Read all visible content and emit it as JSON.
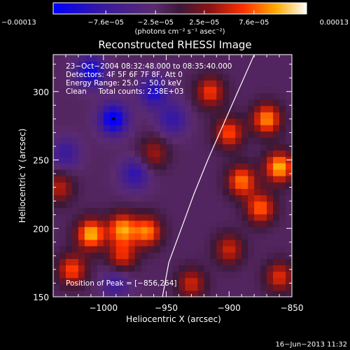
{
  "chart_data": {
    "type": "heatmap",
    "title": "Reconstructed RHESSI Image",
    "xlabel": "Heliocentric X (arcsec)",
    "ylabel": "Heliocentric Y (arcsec)",
    "xlim": [
      -1040,
      -850
    ],
    "ylim": [
      150,
      327
    ],
    "xticks": [
      -1000,
      -950,
      -900,
      -850
    ],
    "yticks": [
      150,
      200,
      250,
      300
    ],
    "xtick_labels": [
      "−1000",
      "−950",
      "−900",
      "−850"
    ],
    "ytick_labels": [
      "150",
      "200",
      "250",
      "300"
    ],
    "colorbar": {
      "range": [
        -0.00013,
        0.00013
      ],
      "ticks": [
        -0.00013,
        -7.6e-05,
        -2.5e-05,
        2.5e-05,
        7.6e-05,
        0.00013
      ],
      "tick_labels": [
        "−0.00013",
        "−7.6e−05",
        "−2.5e−05",
        "2.5e−05",
        "7.6e−05",
        "0.00013"
      ],
      "units": "(photons cm⁻² s⁻¹ asec⁻²)"
    },
    "annotations": [
      "23−Oct−2004 08:32:48.000 to 08:35:40.000",
      "Detectors: 4F 5F 6F 7F 8F, Att 0",
      "Energy Range: 25.0 − 50.0 keV",
      "Clean     Total counts: 2.58E+03",
      "Position of Peak = [−856,264]"
    ],
    "peak_position": [
      -856,
      264
    ],
    "limb_curve": [
      [
        -953,
        150
      ],
      [
        -948,
        175
      ],
      [
        -938,
        200
      ],
      [
        -928,
        225
      ],
      [
        -917,
        250
      ],
      [
        -905,
        275
      ],
      [
        -893,
        300
      ],
      [
        -880,
        327
      ]
    ],
    "minimum_marker": [
      -992,
      280
    ],
    "timestamp": "16−Jun−2013 11:32",
    "bright_sources": [
      {
        "x": -1010,
        "y": 196,
        "level": 0.95
      },
      {
        "x": -985,
        "y": 200,
        "level": 0.85
      },
      {
        "x": -965,
        "y": 198,
        "level": 0.8
      },
      {
        "x": -1025,
        "y": 170,
        "level": 0.7
      },
      {
        "x": -985,
        "y": 180,
        "level": 0.6
      },
      {
        "x": -860,
        "y": 245,
        "level": 0.95
      },
      {
        "x": -870,
        "y": 280,
        "level": 0.85
      },
      {
        "x": -890,
        "y": 235,
        "level": 0.8
      },
      {
        "x": -875,
        "y": 215,
        "level": 0.75
      },
      {
        "x": -915,
        "y": 300,
        "level": 0.65
      },
      {
        "x": -900,
        "y": 270,
        "level": 0.7
      },
      {
        "x": -930,
        "y": 160,
        "level": 0.55
      },
      {
        "x": -860,
        "y": 165,
        "level": 0.6
      },
      {
        "x": -900,
        "y": 185,
        "level": 0.55
      },
      {
        "x": -960,
        "y": 255,
        "level": 0.45
      },
      {
        "x": -1035,
        "y": 230,
        "level": 0.5
      }
    ],
    "dark_sources": [
      {
        "x": -992,
        "y": 280,
        "level": -0.9
      },
      {
        "x": -1010,
        "y": 315,
        "level": -0.75
      },
      {
        "x": -960,
        "y": 300,
        "level": -0.65
      },
      {
        "x": -975,
        "y": 240,
        "level": -0.55
      },
      {
        "x": -1030,
        "y": 255,
        "level": -0.45
      },
      {
        "x": -945,
        "y": 280,
        "level": -0.5
      },
      {
        "x": -990,
        "y": 160,
        "level": -0.4
      }
    ]
  }
}
